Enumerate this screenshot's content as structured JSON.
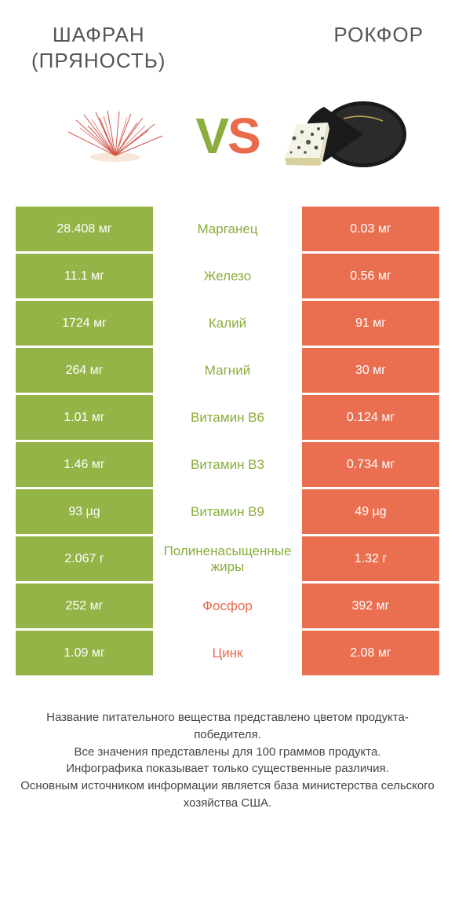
{
  "colors": {
    "left_bg": "#94b447",
    "right_bg": "#ea6f51",
    "left_text": "#8aad3c",
    "right_text": "#e96b4b",
    "body_text": "#444444"
  },
  "header": {
    "left_title": "ШАФРАН\n(ПРЯНОСТЬ)",
    "right_title": "РОКФОР",
    "vs_v": "V",
    "vs_s": "S"
  },
  "rows": [
    {
      "left": "28.408 мг",
      "label": "Марганец",
      "right": "0.03 мг",
      "winner": "left"
    },
    {
      "left": "11.1 мг",
      "label": "Железо",
      "right": "0.56 мг",
      "winner": "left"
    },
    {
      "left": "1724 мг",
      "label": "Калий",
      "right": "91 мг",
      "winner": "left"
    },
    {
      "left": "264 мг",
      "label": "Магний",
      "right": "30 мг",
      "winner": "left"
    },
    {
      "left": "1.01 мг",
      "label": "Витамин B6",
      "right": "0.124 мг",
      "winner": "left"
    },
    {
      "left": "1.46 мг",
      "label": "Витамин B3",
      "right": "0.734 мг",
      "winner": "left"
    },
    {
      "left": "93 µg",
      "label": "Витамин B9",
      "right": "49 µg",
      "winner": "left"
    },
    {
      "left": "2.067 г",
      "label": "Полиненасыщенные жиры",
      "right": "1.32 г",
      "winner": "left"
    },
    {
      "left": "252 мг",
      "label": "Фосфор",
      "right": "392 мг",
      "winner": "right"
    },
    {
      "left": "1.09 мг",
      "label": "Цинк",
      "right": "2.08 мг",
      "winner": "right"
    }
  ],
  "footer": {
    "line1": "Название питательного вещества представлено цветом продукта-победителя.",
    "line2": "Все значения представлены для 100 граммов продукта.",
    "line3": "Инфографика показывает только существенные различия.",
    "line4": "Основным источником информации является база министерства сельского хозяйства США."
  }
}
